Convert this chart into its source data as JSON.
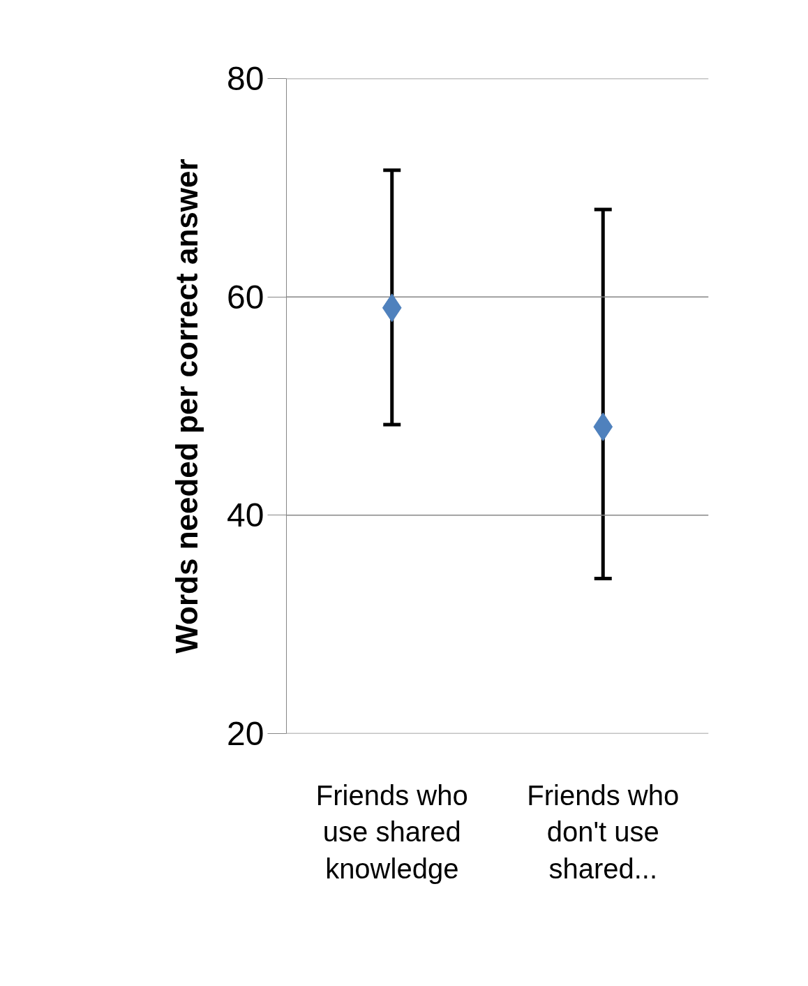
{
  "chart_data": {
    "type": "scatter",
    "ylabel": "Words needed per correct answer",
    "categories": [
      "Friends who use shared knowledge",
      "Friends who don't use shared..."
    ],
    "series": [
      {
        "color": "#4f81bd",
        "values": [
          59.0,
          48.1
        ],
        "errors": [
          [
            48.3,
            71.6
          ],
          [
            34.2,
            68.0
          ]
        ]
      }
    ],
    "marker": "diamond",
    "ylim": [
      20,
      80
    ],
    "yticks": [
      20,
      40,
      60,
      80
    ],
    "grid": "y"
  }
}
